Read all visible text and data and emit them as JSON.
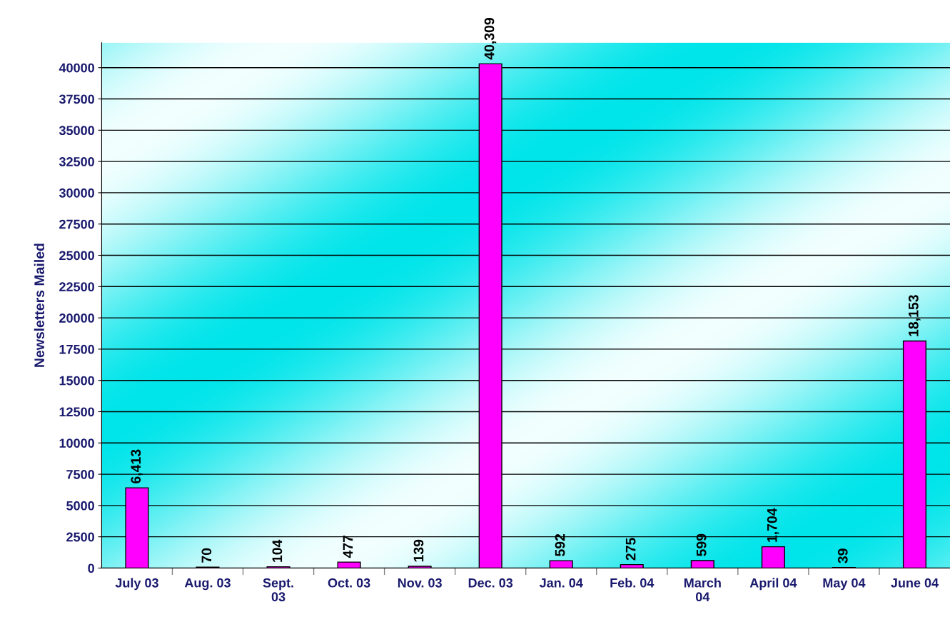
{
  "chart_data": {
    "type": "bar",
    "ylabel": "Newsletters Mailed",
    "categories": [
      "July 03",
      "Aug. 03",
      "Sept.\n03",
      "Oct. 03",
      "Nov. 03",
      "Dec. 03",
      "Jan. 04",
      "Feb. 04",
      "March\n04",
      "April 04",
      "May 04",
      "June 04"
    ],
    "values": [
      6413,
      70,
      104,
      477,
      139,
      40309,
      592,
      275,
      599,
      1704,
      39,
      18153
    ],
    "value_labels": [
      "6,413",
      "70",
      "104",
      "477",
      "139",
      "40,309",
      "592",
      "275",
      "599",
      "1,704",
      "39",
      "18,153"
    ],
    "color": "#ff00ff",
    "ylim": [
      0,
      42000
    ],
    "yticks": [
      0,
      2500,
      5000,
      7500,
      10000,
      12500,
      15000,
      17500,
      20000,
      22500,
      25000,
      27500,
      30000,
      32500,
      35000,
      37500,
      40000
    ],
    "grid": "y",
    "legend": false
  }
}
